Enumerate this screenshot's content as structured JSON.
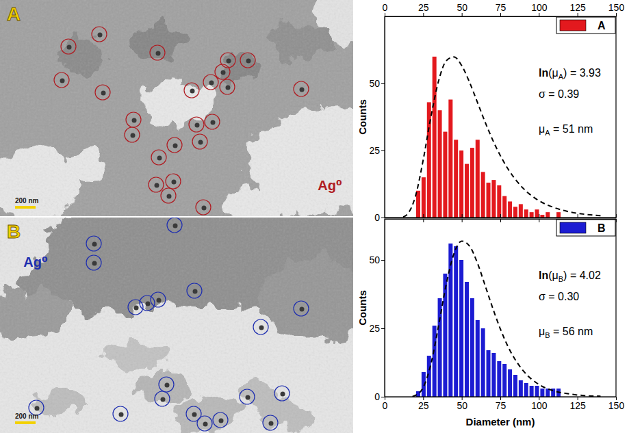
{
  "micrographs": [
    {
      "letter": "A",
      "label": "Ag⁰",
      "scale_bar": "200 nm",
      "color": "#b01c22"
    },
    {
      "letter": "B",
      "label": "Ag⁰",
      "scale_bar": "200 nm",
      "color": "#1f2fb0"
    }
  ],
  "chart_data": [
    {
      "type": "histogram",
      "y_label": "Counts",
      "bins": [
        20,
        23.5,
        27,
        30.5,
        34,
        37.5,
        41,
        44.5,
        48,
        51.5,
        55,
        58.5,
        62,
        65.5,
        69,
        72.5,
        76,
        79.5,
        83,
        86.5,
        90,
        93.5,
        97,
        100.5,
        104,
        107.5,
        111,
        114.5,
        118
      ],
      "series": [
        {
          "name": "A",
          "color": "#e3191e",
          "values": [
            10,
            15,
            43,
            60,
            40,
            32,
            44,
            29,
            25,
            20,
            26,
            29,
            17,
            13,
            14,
            12,
            8,
            6,
            4,
            5,
            3,
            2,
            3,
            1,
            2,
            0,
            2,
            0
          ]
        }
      ],
      "fit": {
        "color": "#000000",
        "line_style": "dashed",
        "x": [
          12,
          15,
          20,
          25,
          30,
          35,
          40,
          45,
          50,
          55,
          60,
          65,
          70,
          75,
          80,
          90,
          100,
          110,
          120,
          130,
          140
        ],
        "values": [
          0.2,
          1.4,
          8,
          21.5,
          37.6,
          51,
          58.5,
          59.9,
          56.6,
          50.5,
          43.2,
          35.8,
          29,
          23.1,
          18.1,
          10.8,
          6.3,
          3.7,
          2.1,
          1.2,
          0.7
        ]
      },
      "annotations": [
        "ln(μA) = 3.93",
        "σ = 0.39",
        "μA = 51 nm"
      ],
      "xlim": [
        0,
        150
      ],
      "xticks": [
        0,
        25,
        50,
        75,
        100,
        125,
        150
      ],
      "ylim": [
        0,
        75
      ],
      "yticks": [
        0,
        25,
        50
      ],
      "legend": "top-right"
    },
    {
      "type": "histogram",
      "x_label": "Diameter (nm)",
      "y_label": "Counts",
      "bins": [
        20,
        23.5,
        27,
        30.5,
        34,
        37.5,
        41,
        44.5,
        48,
        51.5,
        55,
        58.5,
        62,
        65.5,
        69,
        72.5,
        76,
        79.5,
        83,
        86.5,
        90,
        93.5,
        97,
        100.5,
        104,
        107.5,
        111,
        114.5,
        118
      ],
      "series": [
        {
          "name": "B",
          "color": "#1c1cd2",
          "values": [
            2,
            9,
            15,
            26,
            36,
            45,
            56,
            55,
            50,
            42,
            36,
            28,
            25,
            17,
            16,
            13,
            12,
            10,
            8,
            6,
            5,
            4,
            4,
            3,
            3,
            3,
            3,
            0
          ]
        }
      ],
      "fit": {
        "color": "#000000",
        "line_style": "dashed",
        "x": [
          18,
          20,
          25,
          30,
          35,
          40,
          45,
          50,
          55,
          60,
          65,
          70,
          75,
          80,
          90,
          100,
          110,
          120,
          130,
          140
        ],
        "values": [
          0.1,
          0.5,
          3.4,
          12,
          26.1,
          41.3,
          52.4,
          56.9,
          55.1,
          49.1,
          40.9,
          32.5,
          24.8,
          18.3,
          9.4,
          4.5,
          2.1,
          1,
          0.4,
          0.2
        ]
      },
      "annotations": [
        "ln(μB) = 4.02",
        "σ = 0.30",
        "μB = 56 nm"
      ],
      "xlim": [
        0,
        150
      ],
      "xticks": [
        0,
        25,
        50,
        75,
        100,
        125,
        150
      ],
      "ylim": [
        0,
        65
      ],
      "yticks": [
        0,
        25,
        50
      ],
      "legend": "top-right"
    }
  ]
}
